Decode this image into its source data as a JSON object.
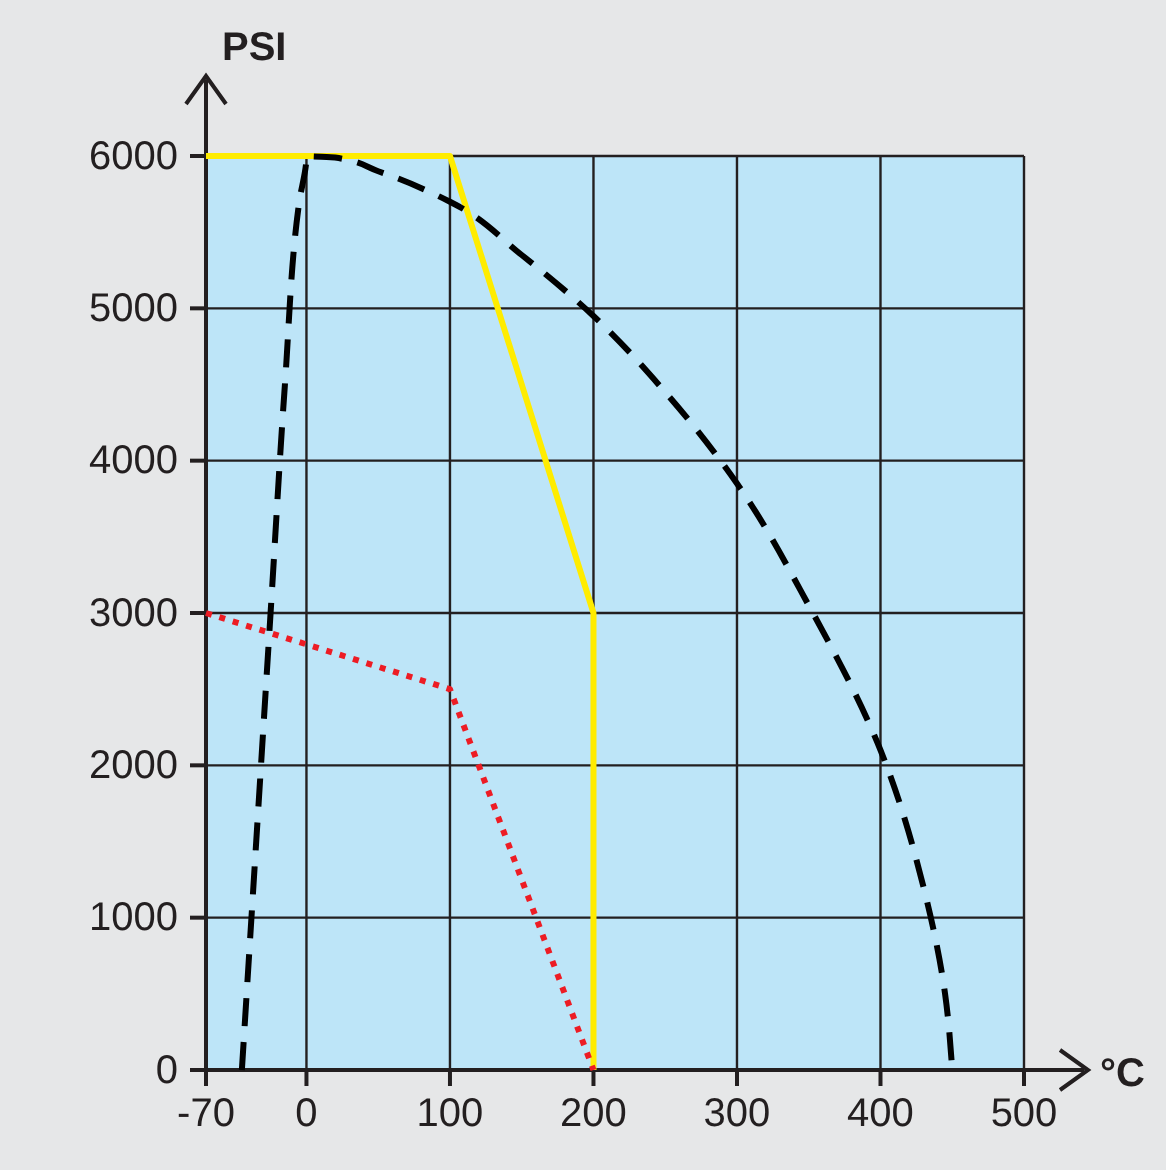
{
  "chart_data": {
    "type": "line",
    "xlabel": "°C",
    "ylabel": "PSI",
    "xlim": [
      -70,
      500
    ],
    "xticks": [
      -70,
      0,
      100,
      200,
      300,
      400,
      500
    ],
    "ylim": [
      0,
      6000
    ],
    "yticks": [
      0,
      1000,
      2000,
      3000,
      4000,
      5000,
      6000
    ],
    "grid": true,
    "marker": "none",
    "series": [
      {
        "color": "#ffec00",
        "line_style": "solid",
        "x": [
          -70,
          100,
          200,
          200
        ],
        "values": [
          6000,
          6000,
          3000,
          0
        ]
      },
      {
        "color": "#ed1c24",
        "line_style": "dotted",
        "x": [
          -70,
          100,
          200
        ],
        "values": [
          3000,
          2500,
          0
        ]
      },
      {
        "color": "#000000",
        "line_style": "dashed",
        "x": [
          -45,
          -35,
          -25,
          -15,
          -5,
          0,
          20,
          50,
          100,
          150,
          200,
          250,
          300,
          350,
          400,
          430,
          445,
          450
        ],
        "values": [
          0,
          1500,
          3000,
          4500,
          5700,
          6000,
          5990,
          5900,
          5700,
          5350,
          4950,
          4450,
          3850,
          3050,
          2100,
          1200,
          500,
          0
        ]
      }
    ]
  }
}
